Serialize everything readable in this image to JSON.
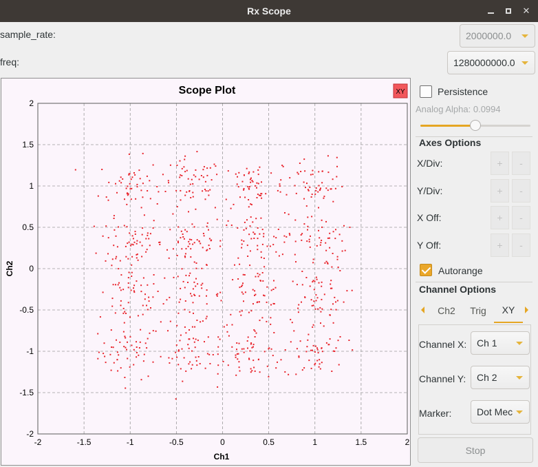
{
  "window": {
    "title": "Rx Scope"
  },
  "params": [
    {
      "label": "sample_rate:",
      "value": "2000000.0"
    },
    {
      "label": "freq:",
      "value": "1280000000.0"
    }
  ],
  "plot": {
    "xy_badge": "XY"
  },
  "controls": {
    "persistence_label": "Persistence",
    "persistence_checked": false,
    "analog_alpha_label": "Analog Alpha:",
    "analog_alpha_value": "0.0994",
    "analog_alpha_level": 0.5,
    "axes_options_title": "Axes Options",
    "axes_rows": [
      {
        "label": "X/Div:",
        "plus": "+",
        "minus": "-"
      },
      {
        "label": "Y/Div:",
        "plus": "+",
        "minus": "-"
      },
      {
        "label": "X Off:",
        "plus": "+",
        "minus": "-"
      },
      {
        "label": "Y Off:",
        "plus": "+",
        "minus": "-"
      }
    ],
    "autorange_label": "Autorange",
    "autorange_checked": true,
    "channel_options_title": "Channel Options",
    "tabs": [
      {
        "label": "Ch2",
        "active": false
      },
      {
        "label": "Trig",
        "active": false
      },
      {
        "label": "XY",
        "active": true
      }
    ],
    "channel_x_label": "Channel X:",
    "channel_x_value": "Ch 1",
    "channel_y_label": "Channel Y:",
    "channel_y_value": "Ch 2",
    "marker_label": "Marker:",
    "marker_value": "Dot Mec",
    "stop_label": "Stop"
  },
  "chart_data": {
    "type": "scatter",
    "title": "Scope Plot",
    "xlabel": "Ch1",
    "ylabel": "Ch2",
    "xlim": [
      -2,
      2
    ],
    "ylim": [
      -2,
      2
    ],
    "xticks": [
      -2,
      -1.5,
      -1,
      -0.5,
      0,
      0.5,
      1,
      1.5,
      2
    ],
    "yticks": [
      -2,
      -1.5,
      -1,
      -0.5,
      0,
      0.5,
      1,
      1.5,
      2
    ],
    "xtick_labels": [
      "-2",
      "-1.5",
      "-1",
      "-0.5",
      "0",
      "0.5",
      "1",
      "1.5",
      "2"
    ],
    "ytick_labels": [
      "-2",
      "-1.5",
      "-1",
      "-0.5",
      "0",
      "0.5",
      "1",
      "1.5",
      "2"
    ],
    "grid": true,
    "marker_color": "#e8242c",
    "cluster_centers_x": [
      -1,
      -0.33,
      0.33,
      1
    ],
    "cluster_centers_y": [
      -1,
      -0.33,
      0.33,
      1
    ],
    "points_per_cluster": 55,
    "cluster_spread": 0.2,
    "series": [
      {
        "x": [],
        "y": []
      }
    ]
  }
}
